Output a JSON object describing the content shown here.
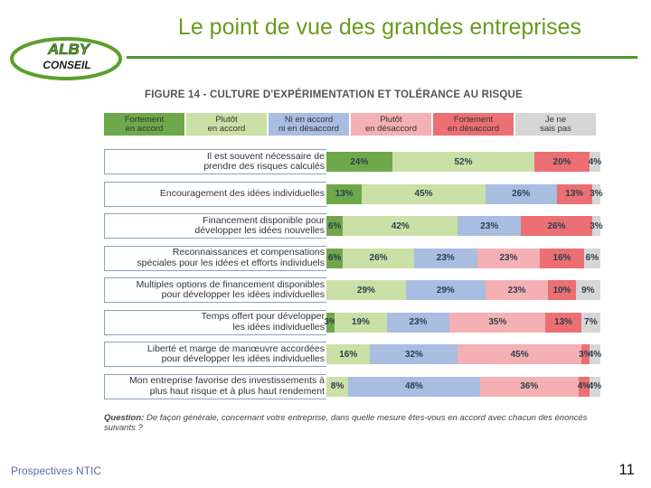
{
  "slide": {
    "title": "Le point de vue des grandes entreprises",
    "footer": "Prospectives NTIC",
    "page_number": "11"
  },
  "logo": {
    "line1": "ALBY",
    "line2": "CONSEIL"
  },
  "chart_data": {
    "type": "stacked-bar-horizontal",
    "title": "FIGURE 14 - CULTURE D'EXPÉRIMENTATION ET TOLÉRANCE AU RISQUE",
    "question_prefix": "Question:",
    "question": " De façon générale, concernant votre entreprise, dans quelle mesure êtes-vous en accord avec chacun des énoncés suivants ?",
    "legend": [
      {
        "l1": "Fortement",
        "l2": "en accord",
        "color": "#6fa84a"
      },
      {
        "l1": "Plutôt",
        "l2": "en accord",
        "color": "#cbe0a6"
      },
      {
        "l1": "Ni en accord",
        "l2": "ni en désaccord",
        "color": "#a8bde0"
      },
      {
        "l1": "Plutôt",
        "l2": "en désaccord",
        "color": "#f5b0b3"
      },
      {
        "l1": "Fortement",
        "l2": "en désaccord",
        "color": "#ec6f74"
      },
      {
        "l1": "Je ne",
        "l2": "sais pas",
        "color": "#d6d6d6"
      }
    ],
    "series_names": [
      "Fortement en accord",
      "Plutôt en accord",
      "Ni en accord ni en désaccord",
      "Plutôt en désaccord",
      "Fortement en désaccord",
      "Je ne sais pas"
    ],
    "rows": [
      {
        "l1": "Il est souvent nécessaire de",
        "l2": "prendre des risques calculés",
        "values": [
          24,
          52,
          0,
          0,
          20,
          4
        ],
        "labels": [
          "24%",
          "52%",
          "",
          "",
          "20%",
          "4%"
        ]
      },
      {
        "l1": "Encouragement des idées individuelles",
        "l2": "",
        "values": [
          13,
          45,
          26,
          0,
          13,
          3
        ],
        "labels": [
          "13%",
          "45%",
          "26%",
          "",
          "13%",
          "3%"
        ]
      },
      {
        "l1": "Financement disponible pour",
        "l2": "développer les idées nouvelles",
        "values": [
          6,
          42,
          23,
          0,
          26,
          3
        ],
        "labels": [
          "6%",
          "42%",
          "23%",
          "",
          "26%",
          "3%"
        ]
      },
      {
        "l1": "Reconnaissances et compensations",
        "l2": "spéciales pour les idées et efforts individuels",
        "values": [
          6,
          26,
          23,
          23,
          16,
          6
        ],
        "labels": [
          "6%",
          "26%",
          "23%",
          "23%",
          "16%",
          "6%"
        ]
      },
      {
        "l1": "Multiples options de financement disponibles",
        "l2": "pour développer les idées individuelles",
        "values": [
          0,
          29,
          29,
          23,
          10,
          9
        ],
        "labels": [
          "",
          "29%",
          "29%",
          "23%",
          "10%",
          "9%"
        ]
      },
      {
        "l1": "Temps offert pour développer",
        "l2": "les idées individuelles",
        "values": [
          3,
          19,
          23,
          35,
          13,
          7
        ],
        "labels": [
          "3%",
          "19%",
          "23%",
          "35%",
          "13%",
          "7%"
        ]
      },
      {
        "l1": "Liberté et marge de manœuvre accordées",
        "l2": "pour développer les idées individuelles",
        "values": [
          0,
          16,
          32,
          45,
          3,
          4
        ],
        "labels": [
          "",
          "16%",
          "32%",
          "45%",
          "3%",
          "4%"
        ]
      },
      {
        "l1": "Mon entreprise favorise des investissements à",
        "l2": "plus haut risque et à plus haut rendement",
        "values": [
          0,
          8,
          48,
          36,
          4,
          4
        ],
        "labels": [
          "",
          "8%",
          "48%",
          "36%",
          "4%",
          "4%"
        ]
      }
    ]
  }
}
